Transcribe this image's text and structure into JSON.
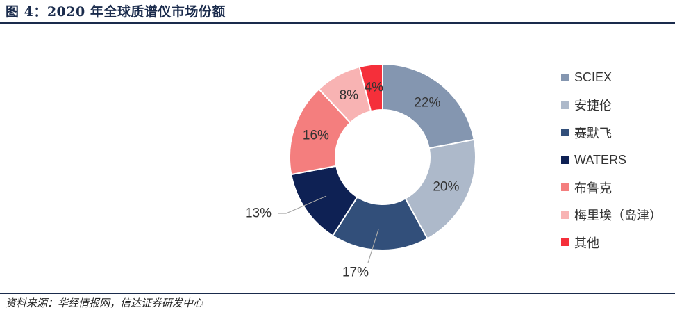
{
  "title": "图 4：2020 年全球质谱仪市场份额",
  "source": "资料来源：华经情报网，信达证券研发中心",
  "chart_data": {
    "type": "pie",
    "donut": true,
    "legend_position": "right",
    "series": [
      {
        "name": "SCIEX",
        "value": 22,
        "label": "22%",
        "color": "#8496b0"
      },
      {
        "name": "安捷伦",
        "value": 20,
        "label": "20%",
        "color": "#adb9ca"
      },
      {
        "name": "赛默飞",
        "value": 17,
        "label": "17%",
        "color": "#324f7a"
      },
      {
        "name": "WATERS",
        "value": 13,
        "label": "13%",
        "color": "#0e2154"
      },
      {
        "name": "布鲁克",
        "value": 16,
        "label": "16%",
        "color": "#f47e7e"
      },
      {
        "name": "梅里埃（岛津）",
        "value": 8,
        "label": "8%",
        "color": "#f8b3b3"
      },
      {
        "name": "其他",
        "value": 4,
        "label": "4%",
        "color": "#f52f3a"
      }
    ]
  }
}
